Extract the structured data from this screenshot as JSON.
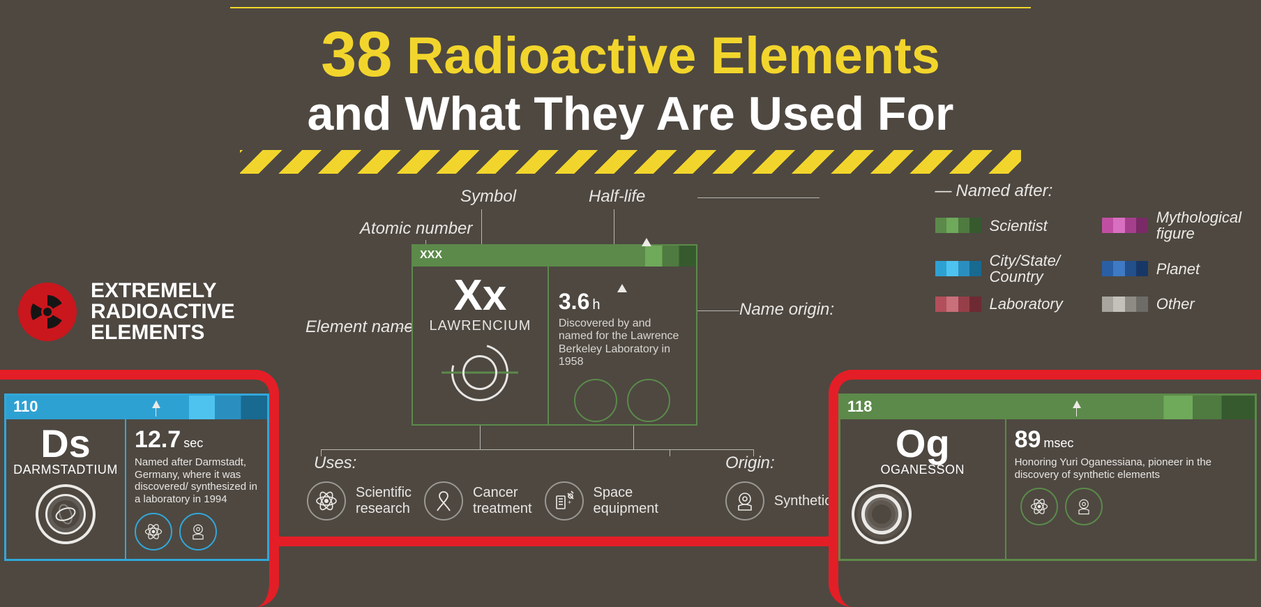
{
  "colors": {
    "background": "#4e4841",
    "yellow": "#f2d52c",
    "white": "#ffffff",
    "red": "#e41e26",
    "badge_red": "#c9171d",
    "label_gray": "#e8e6e3",
    "line_gray": "#b9b7b2",
    "green_mid": "#5c8a4a",
    "green_light": "#6fa95a",
    "green_dark": "#4f7a40",
    "green_darker": "#365a2e",
    "cyan_mid": "#2ea1d3",
    "cyan_light": "#4fc3ef",
    "cyan_dark": "#2a8fbf",
    "cyan_darker": "#186a91"
  },
  "title": {
    "number": "38",
    "line1_rest": "Radioactive Elements",
    "line2": "and What They Are Used For"
  },
  "section_label": {
    "line1": "EXTREMELY",
    "line2": "RADIOACTIVE",
    "line3": "ELEMENTS"
  },
  "legend_card": {
    "atomic_number_placeholder": "XXX",
    "symbol": "Xx",
    "name": "LAWRENCIUM",
    "half_life_value": "3.6",
    "half_life_unit": "h",
    "name_origin_text": "Discovered by and named for the Lawrence Berkeley Laboratory in 1958"
  },
  "annotations": {
    "atomic_number": "Atomic number",
    "symbol": "Symbol",
    "half_life": "Half-life",
    "element_name": "Element name",
    "name_origin": "Name origin:",
    "uses": "Uses:",
    "origin": "Origin:",
    "named_after": "Named after:"
  },
  "uses_list": [
    {
      "icon": "atom-icon",
      "label": "Scientific\nresearch"
    },
    {
      "icon": "ribbon-icon",
      "label": "Cancer\ntreatment"
    },
    {
      "icon": "satellite-icon",
      "label": "Space\nequipment"
    }
  ],
  "origin_item": {
    "icon": "reactor-icon",
    "label": "Synthetic"
  },
  "named_legend": [
    {
      "label": "Scientist",
      "colors": [
        "#5c8a4a",
        "#6fa95a",
        "#4f7a40",
        "#365a2e"
      ]
    },
    {
      "label": "Mythological\nfigure",
      "colors": [
        "#c04fa3",
        "#d86fc0",
        "#a63f8b",
        "#7a2a66"
      ]
    },
    {
      "label": "City/State/\nCountry",
      "colors": [
        "#2ea1d3",
        "#4fc3ef",
        "#2a8fbf",
        "#186a91"
      ]
    },
    {
      "label": "Planet",
      "colors": [
        "#2a5fa6",
        "#3f7ac4",
        "#234f8b",
        "#173866"
      ]
    },
    {
      "label": "Laboratory",
      "colors": [
        "#b24f5b",
        "#c9707b",
        "#963f49",
        "#6e2a33"
      ]
    },
    {
      "label": "Other",
      "colors": [
        "#a7a59e",
        "#c3c1ba",
        "#8d8b84",
        "#6e6c66"
      ]
    }
  ],
  "ds": {
    "atomic_number": "110",
    "symbol": "Ds",
    "name": "DARMSTADTIUM",
    "half_life_value": "12.7",
    "half_life_unit": "sec",
    "desc": "Named after Darmstadt, Germany, where it was discovered/ synthesized in a laboratory in 1994"
  },
  "og": {
    "atomic_number": "118",
    "symbol": "Og",
    "name": "OGANESSON",
    "half_life_value": "89",
    "half_life_unit": "msec",
    "desc": "Honoring Yuri Oganessiana, pioneer in the discovery of synthetic elements"
  }
}
